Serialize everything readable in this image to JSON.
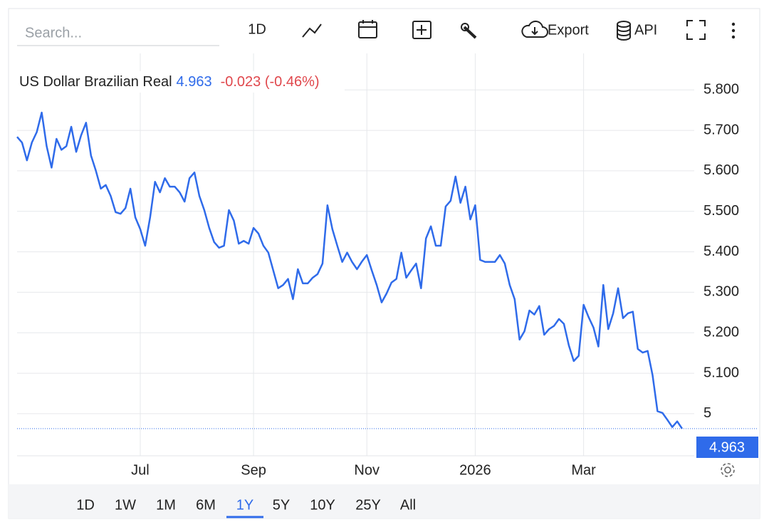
{
  "toolbar": {
    "search_placeholder": "Search...",
    "interval": "1D",
    "export": "Export",
    "api": "API"
  },
  "ranges": {
    "items": [
      "1D",
      "1W",
      "1M",
      "6M",
      "1Y",
      "5Y",
      "10Y",
      "25Y",
      "All"
    ],
    "active": "1Y"
  },
  "chart_data": {
    "type": "line",
    "series": [
      {
        "name": "US Dollar Brazilian Real",
        "color": "#2f6bea",
        "values": [
          5.684,
          5.67,
          5.626,
          5.67,
          5.696,
          5.744,
          5.661,
          5.608,
          5.679,
          5.652,
          5.661,
          5.709,
          5.647,
          5.688,
          5.719,
          5.638,
          5.6,
          5.556,
          5.565,
          5.538,
          5.498,
          5.494,
          5.508,
          5.556,
          5.485,
          5.456,
          5.415,
          5.485,
          5.573,
          5.547,
          5.582,
          5.561,
          5.561,
          5.547,
          5.524,
          5.582,
          5.596,
          5.538,
          5.503,
          5.459,
          5.424,
          5.41,
          5.415,
          5.503,
          5.477,
          5.42,
          5.427,
          5.42,
          5.459,
          5.445,
          5.415,
          5.398,
          5.354,
          5.31,
          5.318,
          5.333,
          5.283,
          5.357,
          5.322,
          5.322,
          5.336,
          5.345,
          5.371,
          5.515,
          5.456,
          5.415,
          5.375,
          5.398,
          5.375,
          5.357,
          5.376,
          5.392,
          5.354,
          5.318,
          5.275,
          5.297,
          5.324,
          5.333,
          5.398,
          5.336,
          5.354,
          5.371,
          5.31,
          5.433,
          5.463,
          5.415,
          5.415,
          5.512,
          5.526,
          5.586,
          5.521,
          5.561,
          5.48,
          5.515,
          5.38,
          5.375,
          5.375,
          5.375,
          5.392,
          5.371,
          5.318,
          5.283,
          5.183,
          5.204,
          5.255,
          5.245,
          5.266,
          5.195,
          5.209,
          5.217,
          5.234,
          5.222,
          5.169,
          5.13,
          5.143,
          5.269,
          5.239,
          5.213,
          5.166,
          5.318,
          5.209,
          5.248,
          5.31,
          5.236,
          5.248,
          5.252,
          5.16,
          5.151,
          5.155,
          5.095,
          5.006,
          5.002,
          4.985,
          4.967,
          4.981,
          4.963
        ]
      }
    ],
    "categories": [
      null,
      null,
      null,
      null,
      null,
      null,
      null,
      null,
      null,
      null,
      null,
      null,
      null,
      null,
      null,
      null,
      null,
      null,
      null,
      null,
      null,
      null,
      null,
      null,
      null,
      "Jul",
      null,
      null,
      null,
      null,
      null,
      null,
      null,
      null,
      null,
      null,
      null,
      null,
      null,
      null,
      null,
      null,
      null,
      null,
      null,
      null,
      null,
      null,
      "Sep",
      null,
      null,
      null,
      null,
      null,
      null,
      null,
      null,
      null,
      null,
      null,
      null,
      null,
      null,
      null,
      null,
      null,
      null,
      null,
      null,
      null,
      null,
      "Nov",
      null,
      null,
      null,
      null,
      null,
      null,
      null,
      null,
      null,
      null,
      null,
      null,
      null,
      null,
      null,
      null,
      null,
      null,
      null,
      null,
      null,
      "2026",
      null,
      null,
      null,
      null,
      null,
      null,
      null,
      null,
      null,
      null,
      null,
      null,
      null,
      null,
      null,
      null,
      null,
      null,
      null,
      null,
      null,
      "Mar",
      null,
      null,
      null,
      null,
      null,
      null,
      null,
      null,
      null,
      null,
      null,
      null,
      null,
      null,
      null,
      null,
      null,
      null,
      null,
      null
    ],
    "last_value": 4.963,
    "last_value_label": "4.963",
    "change_label": "-0.023 (-0.46%)",
    "ylim": [
      4.896,
      5.855
    ],
    "yticks": [
      5,
      {
        "value": 5.1,
        "label": "5.100"
      },
      {
        "value": 5.2,
        "label": "5.200"
      },
      {
        "value": 5.3,
        "label": "5.300"
      },
      {
        "value": 5.4,
        "label": "5.400"
      },
      {
        "value": 5.5,
        "label": "5.500"
      },
      {
        "value": 5.6,
        "label": "5.600"
      },
      {
        "value": 5.7,
        "label": "5.700"
      },
      {
        "value": 5.8,
        "label": "5.800"
      }
    ],
    "grid": true
  }
}
